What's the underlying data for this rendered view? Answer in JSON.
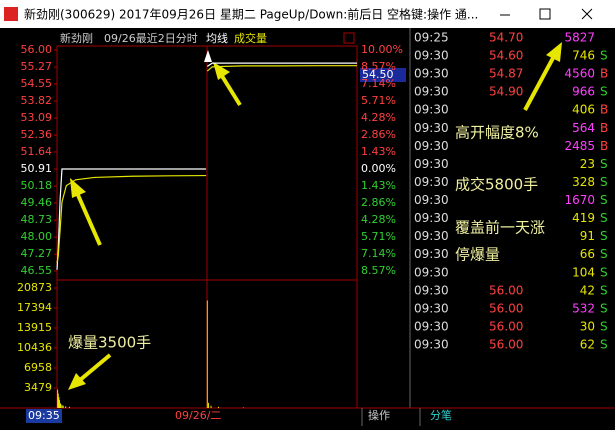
{
  "window": {
    "title": "新劲刚(300629) 2017年09月26日 星期二 PageUp/Down:前后日 空格键:操作 通..."
  },
  "chart": {
    "header": {
      "stock": "新劲刚",
      "period": "09/26最近2日分时",
      "avg_label": "均线",
      "volume_label": "成交量"
    },
    "price": {
      "ylim": [
        46.55,
        56.0
      ],
      "yticks": [
        {
          "value": 56.0,
          "label": "56.00"
        },
        {
          "value": 55.27,
          "label": "55.27"
        },
        {
          "value": 54.55,
          "label": "54.55"
        },
        {
          "value": 53.82,
          "label": "53.82"
        },
        {
          "value": 53.09,
          "label": "53.09"
        },
        {
          "value": 52.36,
          "label": "52.36"
        },
        {
          "value": 51.64,
          "label": "51.64"
        },
        {
          "value": 50.91,
          "label": "50.91"
        },
        {
          "value": 50.18,
          "label": "50.18"
        },
        {
          "value": 49.46,
          "label": "49.46"
        },
        {
          "value": 48.73,
          "label": "48.73"
        },
        {
          "value": 48.0,
          "label": "48.00"
        },
        {
          "value": 47.27,
          "label": "47.27"
        },
        {
          "value": 46.55,
          "label": "46.55"
        }
      ],
      "percent_labels": [
        "10.00%",
        "8.57%",
        "7.14%",
        "5.71%",
        "4.28%",
        "2.86%",
        "1.43%",
        "0.00%",
        "1.43%",
        "2.86%",
        "4.28%",
        "5.71%",
        "7.14%",
        "8.57%"
      ],
      "up_color": "#ff4040",
      "flat_color": "#ffffff",
      "down_color": "#30d030",
      "xlim": [
        0,
        483
      ],
      "x": [
        0,
        2,
        5,
        8,
        15,
        30,
        60,
        120,
        180,
        240,
        241,
        242,
        250,
        270,
        300,
        360,
        420,
        483
      ],
      "series": [
        {
          "color": "#ffffff",
          "values": [
            46.6,
            47.5,
            49.6,
            50.91,
            50.91,
            50.91,
            50.91,
            50.91,
            50.91,
            50.91,
            null,
            55.3,
            55.44,
            55.44,
            55.44,
            55.44,
            55.44,
            55.44
          ]
        },
        {
          "color": "#e6e600",
          "values": [
            46.9,
            47.2,
            48.3,
            49.5,
            50.2,
            50.45,
            50.55,
            50.6,
            50.62,
            50.63,
            null,
            55.1,
            55.28,
            55.3,
            55.32,
            55.32,
            55.33,
            55.33
          ]
        }
      ],
      "last_price": "54.50"
    },
    "volume": {
      "ylim": [
        0,
        20873
      ],
      "yticks": [
        20873,
        17394,
        13915,
        10436,
        6958,
        3479
      ],
      "color": "#e6e600",
      "x": [
        1,
        2,
        3,
        4,
        5,
        6,
        8,
        10,
        14,
        20,
        242,
        244,
        248,
        260,
        300
      ],
      "values": [
        3200,
        2500,
        1900,
        1400,
        900,
        700,
        500,
        400,
        300,
        200,
        18700,
        900,
        400,
        200,
        100
      ]
    },
    "x_labels": [
      "09:35",
      "09/26/二"
    ]
  },
  "buttons": [
    "操作",
    "分笔"
  ],
  "ticks_table": {
    "rows": [
      {
        "time": "09:25",
        "price": "54.70",
        "volume": "5827",
        "side": null,
        "color": "#ff40ff"
      },
      {
        "time": "09:30",
        "price": "54.60",
        "volume": "746",
        "side": "S",
        "color": "#e6e600"
      },
      {
        "time": "09:30",
        "price": "54.87",
        "volume": "4560",
        "side": "B",
        "color": "#ff40ff"
      },
      {
        "time": "09:30",
        "price": "54.90",
        "volume": "966",
        "side": "S",
        "color": "#ff40ff"
      },
      {
        "time": "09:30",
        "price": null,
        "volume": "406",
        "side": "B",
        "color": "#e6e600"
      },
      {
        "time": "09:30",
        "price": null,
        "volume": "564",
        "side": "B",
        "color": "#ff40ff"
      },
      {
        "time": "09:30",
        "price": null,
        "volume": "2485",
        "side": "B",
        "color": "#ff40ff"
      },
      {
        "time": "09:30",
        "price": null,
        "volume": "23",
        "side": "S",
        "color": "#e6e600"
      },
      {
        "time": "09:30",
        "price": null,
        "volume": "328",
        "side": "S",
        "color": "#e6e600"
      },
      {
        "time": "09:30",
        "price": null,
        "volume": "1670",
        "side": "S",
        "color": "#ff40ff"
      },
      {
        "time": "09:30",
        "price": null,
        "volume": "419",
        "side": "S",
        "color": "#e6e600"
      },
      {
        "time": "09:30",
        "price": null,
        "volume": "91",
        "side": "S",
        "color": "#e6e600"
      },
      {
        "time": "09:30",
        "price": null,
        "volume": "66",
        "side": "S",
        "color": "#e6e600"
      },
      {
        "time": "09:30",
        "price": null,
        "volume": "104",
        "side": "S",
        "color": "#e6e600"
      },
      {
        "time": "09:30",
        "price": "56.00",
        "volume": "42",
        "side": "S",
        "color": "#e6e600"
      },
      {
        "time": "09:30",
        "price": "56.00",
        "volume": "532",
        "side": "S",
        "color": "#ff40ff"
      },
      {
        "time": "09:30",
        "price": "56.00",
        "volume": "30",
        "side": "S",
        "color": "#e6e600"
      },
      {
        "time": "09:30",
        "price": "56.00",
        "volume": "62",
        "side": "S",
        "color": "#e6e600"
      }
    ],
    "buy_color": "#ff4040",
    "sell_color": "#30d030"
  },
  "annotations": [
    "高开幅度8%",
    "成交5800手",
    "覆盖前一天涨",
    "停爆量",
    "爆量3500手"
  ]
}
